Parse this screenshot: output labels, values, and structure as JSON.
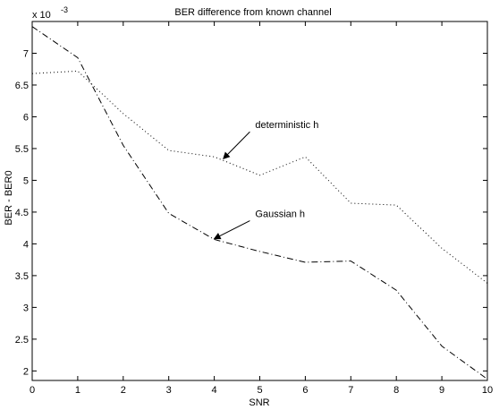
{
  "chart_data": {
    "type": "line",
    "title": "BER difference from known channel",
    "xlabel": "SNR",
    "ylabel": "BER - BER0",
    "y_exponent_label": "x 10",
    "y_exponent_power": "-3",
    "xlim": [
      0,
      10
    ],
    "ylim": [
      1.85,
      7.5
    ],
    "x_ticks": [
      0,
      1,
      2,
      3,
      4,
      5,
      6,
      7,
      8,
      9,
      10
    ],
    "y_ticks": [
      2,
      2.5,
      3,
      3.5,
      4,
      4.5,
      5,
      5.5,
      6,
      6.5,
      7
    ],
    "y_tick_labels": [
      "2",
      "2.5",
      "3",
      "3.5",
      "4",
      "4.5",
      "5",
      "5.5",
      "6",
      "6.5",
      "7"
    ],
    "grid": false,
    "x": [
      0,
      1,
      2,
      3,
      4,
      5,
      6,
      7,
      8,
      9,
      10
    ],
    "series": [
      {
        "name": "deterministic h",
        "style": "dotted",
        "color": "#000000",
        "values": [
          6.68,
          6.72,
          6.05,
          5.47,
          5.37,
          5.08,
          5.37,
          4.64,
          4.61,
          3.93,
          3.38
        ]
      },
      {
        "name": "Gaussian h",
        "style": "dashdot",
        "color": "#000000",
        "values": [
          7.42,
          6.93,
          5.55,
          4.48,
          4.07,
          3.88,
          3.71,
          3.73,
          3.27,
          2.39,
          1.87
        ]
      }
    ],
    "annotations": [
      {
        "text": "deterministic h",
        "series": 0,
        "arrow_to_x": 4.2,
        "arrow_to_y": 5.34,
        "text_x": 4.9,
        "text_y": 5.82
      },
      {
        "text": "Gaussian h",
        "series": 1,
        "arrow_to_x": 4.0,
        "arrow_to_y": 4.08,
        "text_x": 4.9,
        "text_y": 4.42
      }
    ]
  }
}
